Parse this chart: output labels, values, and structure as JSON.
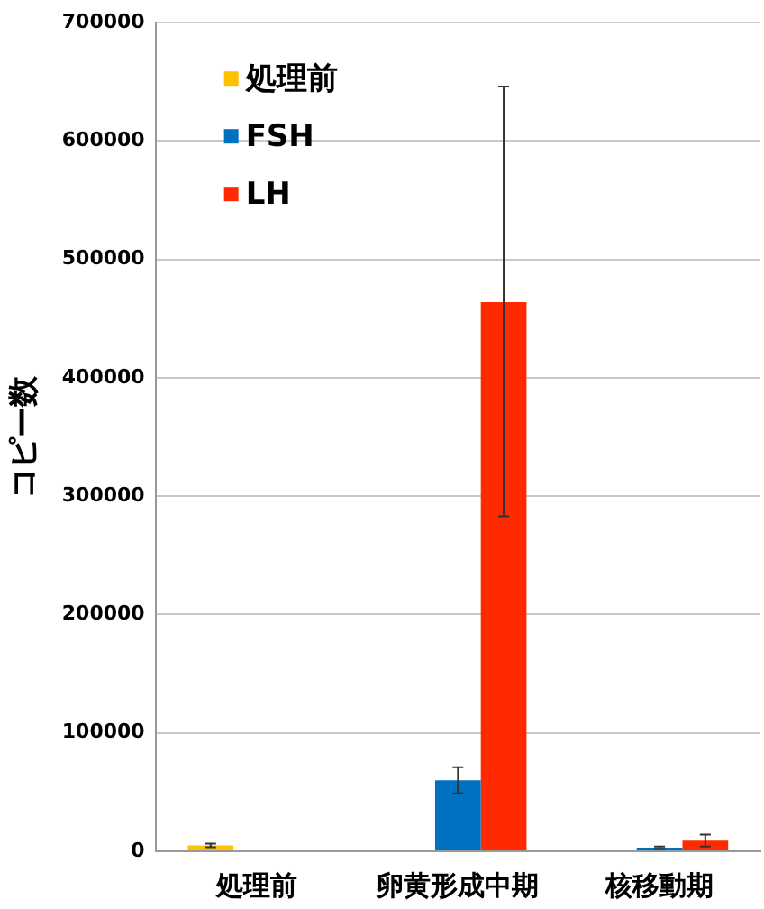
{
  "chart_data": {
    "type": "bar",
    "ylabel": "コピー数",
    "categories": [
      "処理前",
      "卵黄形成中期",
      "核移動期"
    ],
    "series": [
      {
        "name": "処理前",
        "color": "#ffc000",
        "values": [
          5000,
          null,
          null
        ],
        "errors": [
          1500,
          null,
          null
        ]
      },
      {
        "name": "FSH",
        "color": "#0070c0",
        "values": [
          null,
          60000,
          3000
        ],
        "errors": [
          null,
          11000,
          1000
        ]
      },
      {
        "name": "LH",
        "color": "#ff2a00",
        "values": [
          null,
          464000,
          9000
        ],
        "errors": [
          null,
          [
            283000,
            646000
          ],
          5000
        ]
      }
    ],
    "ylim": [
      0,
      700000
    ],
    "yticks": [
      0,
      100000,
      200000,
      300000,
      400000,
      500000,
      600000,
      700000
    ],
    "grid": "y",
    "legend": "top left"
  }
}
